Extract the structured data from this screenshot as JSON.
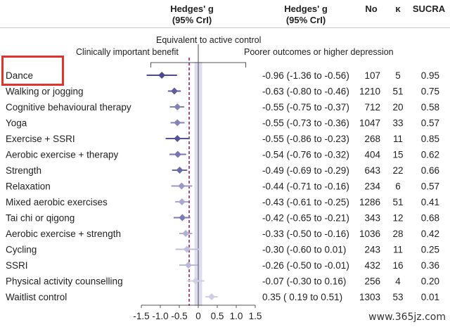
{
  "header": {
    "left_title": "Hedges' g",
    "left_sub": "(95% CrI)",
    "mid_title": "Hedges' g",
    "mid_sub": "(95% CrI)",
    "col_no": "No",
    "col_k": "κ",
    "col_sucra": "SUCRA"
  },
  "watermark": "www.365jz.com",
  "chart_data": {
    "type": "forest",
    "annotations": {
      "equivalent": "Equivalent to active control",
      "clinical": "Clinically important benefit",
      "poorer": "Poorer outcomes or higher depression"
    },
    "x_ticks": [
      "-1.5",
      "-1.0",
      "-0.5",
      "0",
      "0.5",
      "1.0",
      "1.5"
    ],
    "x_tick_values": [
      -1.5,
      -1.0,
      -0.5,
      0,
      0.5,
      1.0,
      1.5
    ],
    "xlim": [
      -1.5,
      1.5
    ],
    "clinical_threshold": -0.24,
    "equivalence_band": [
      -0.1,
      0.1
    ],
    "highlighted_row": "Dance",
    "rows": [
      {
        "label": "Dance",
        "g": -0.96,
        "lo": -1.36,
        "hi": -0.56,
        "ci_text": "-0.96 (-1.36 to -0.56)",
        "no": "107",
        "k": "5",
        "sucra": "0.95",
        "color": "#4b4a8c"
      },
      {
        "label": "Walking or jogging",
        "g": -0.63,
        "lo": -0.8,
        "hi": -0.46,
        "ci_text": "-0.63 (-0.80 to -0.46)",
        "no": "1210",
        "k": "51",
        "sucra": "0.75",
        "color": "#5f5e9e"
      },
      {
        "label": "Cognitive behavioural therapy",
        "g": -0.55,
        "lo": -0.75,
        "hi": -0.37,
        "ci_text": "-0.55 (-0.75 to -0.37)",
        "no": "712",
        "k": "20",
        "sucra": "0.58",
        "color": "#8584b8"
      },
      {
        "label": "Yoga",
        "g": -0.55,
        "lo": -0.73,
        "hi": -0.36,
        "ci_text": "-0.55 (-0.73 to -0.36)",
        "no": "1047",
        "k": "33",
        "sucra": "0.57",
        "color": "#8584b8"
      },
      {
        "label": "Exercise + SSRI",
        "g": -0.55,
        "lo": -0.86,
        "hi": -0.23,
        "ci_text": "-0.55 (-0.86 to -0.23)",
        "no": "268",
        "k": "11",
        "sucra": "0.85",
        "color": "#55549a"
      },
      {
        "label": "Aerobic exercise + therapy",
        "g": -0.54,
        "lo": -0.76,
        "hi": -0.32,
        "ci_text": "-0.54 (-0.76 to -0.32)",
        "no": "404",
        "k": "15",
        "sucra": "0.62",
        "color": "#7675b0"
      },
      {
        "label": "Strength",
        "g": -0.49,
        "lo": -0.69,
        "hi": -0.29,
        "ci_text": "-0.49 (-0.69 to -0.29)",
        "no": "643",
        "k": "22",
        "sucra": "0.66",
        "color": "#6b6aa8"
      },
      {
        "label": "Relaxation",
        "g": -0.44,
        "lo": -0.71,
        "hi": -0.16,
        "ci_text": "-0.44 (-0.71 to -0.16)",
        "no": "234",
        "k": "6",
        "sucra": "0.57",
        "color": "#9a99c6"
      },
      {
        "label": "Mixed aerobic exercises",
        "g": -0.43,
        "lo": -0.61,
        "hi": -0.25,
        "ci_text": "-0.43 (-0.61 to -0.25)",
        "no": "1286",
        "k": "51",
        "sucra": "0.41",
        "color": "#a9a8cf"
      },
      {
        "label": "Tai chi or qigong",
        "g": -0.42,
        "lo": -0.65,
        "hi": -0.21,
        "ci_text": "-0.42 (-0.65 to -0.21)",
        "no": "343",
        "k": "12",
        "sucra": "0.68",
        "color": "#7c7bb3"
      },
      {
        "label": "Aerobic exercise + strength",
        "g": -0.33,
        "lo": -0.5,
        "hi": -0.16,
        "ci_text": "-0.33 (-0.50 to -0.16)",
        "no": "1036",
        "k": "28",
        "sucra": "0.42",
        "color": "#b1b0d3"
      },
      {
        "label": "Cycling",
        "g": -0.3,
        "lo": -0.6,
        "hi": 0.01,
        "ci_text": "-0.30 (-0.60 to 0.01)",
        "no": "243",
        "k": "11",
        "sucra": "0.25",
        "color": "#c0bfdc"
      },
      {
        "label": "SSRI",
        "g": -0.26,
        "lo": -0.5,
        "hi": -0.01,
        "ci_text": "-0.26 (-0.50 to -0.01)",
        "no": "432",
        "k": "16",
        "sucra": "0.36",
        "color": "#bab9d9"
      },
      {
        "label": "Physical activity counselling",
        "g": -0.07,
        "lo": -0.3,
        "hi": 0.16,
        "ci_text": "-0.07 (-0.30 to 0.16)",
        "no": "256",
        "k": "4",
        "sucra": "0.20",
        "color": "#cfcee4"
      },
      {
        "label": "Waitlist control",
        "g": 0.35,
        "lo": 0.19,
        "hi": 0.51,
        "ci_text": "0.35 ( 0.19 to 0.51)",
        "no": "1303",
        "k": "53",
        "sucra": "0.01",
        "color": "#cfcee4"
      }
    ]
  }
}
